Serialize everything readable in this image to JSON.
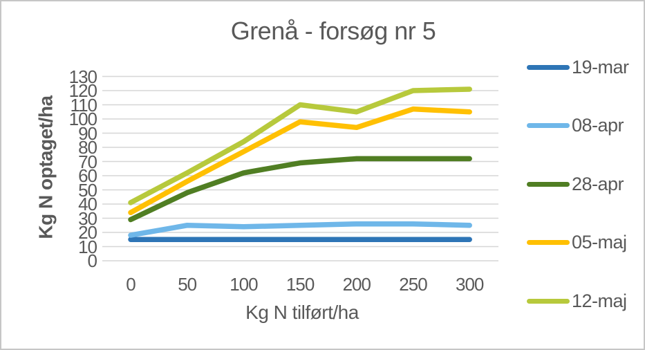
{
  "chart_data": {
    "type": "line",
    "title": "Grenå - forsøg nr 5",
    "xlabel": "Kg N tilført/ha",
    "ylabel": "Kg N optaget/ha",
    "categories": [
      0,
      50,
      100,
      150,
      200,
      250,
      300
    ],
    "yticks": [
      0,
      10,
      20,
      30,
      40,
      50,
      60,
      70,
      80,
      90,
      100,
      110,
      120,
      130
    ],
    "ylim": [
      0,
      130
    ],
    "grid": "horizontal",
    "legend_position": "right",
    "series": [
      {
        "name": "19-mar",
        "color": "#2E75B6",
        "values": [
          15,
          15,
          15,
          15,
          15,
          15,
          15
        ]
      },
      {
        "name": "08-apr",
        "color": "#6FB7E9",
        "values": [
          18,
          25,
          24,
          25,
          26,
          26,
          25
        ]
      },
      {
        "name": "28-apr",
        "color": "#507E23",
        "values": [
          29,
          48,
          62,
          69,
          72,
          72,
          72
        ]
      },
      {
        "name": "05-maj",
        "color": "#FFC003",
        "values": [
          34,
          56,
          77,
          98,
          94,
          107,
          105
        ]
      },
      {
        "name": "12-maj",
        "color": "#B7C93C",
        "values": [
          41,
          62,
          84,
          110,
          105,
          120,
          121
        ]
      }
    ],
    "colors": {
      "text": "#595959",
      "gridline": "#D6D6D6",
      "background": "#FFFFFF",
      "frame_border": "#C6C6C6"
    }
  }
}
